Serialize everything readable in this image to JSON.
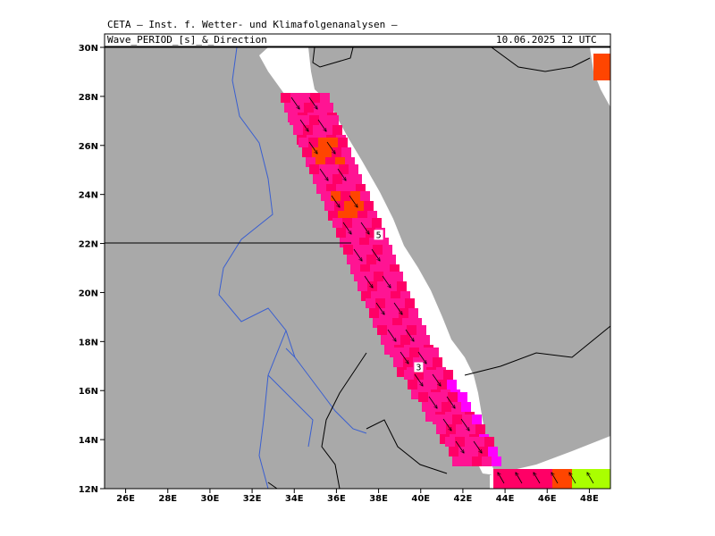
{
  "header": {
    "institute": "CETA — Inst. f. Wetter- und Klimafolgenanalysen —",
    "parameter": "Wave_PERIOD_[s]_&_Direction",
    "valid_time": "10.06.2025 12 UTC"
  },
  "map": {
    "lon_range": [
      25,
      49
    ],
    "lat_range": [
      12,
      30
    ],
    "lon_ticks": [
      "26E",
      "28E",
      "30E",
      "32E",
      "34E",
      "36E",
      "38E",
      "40E",
      "42E",
      "44E",
      "46E",
      "48E"
    ],
    "lat_ticks": [
      "12N",
      "14N",
      "16N",
      "18N",
      "20N",
      "22N",
      "24N",
      "26N",
      "28N",
      "30N"
    ],
    "land_color": "#a9a9a9",
    "coast_color": "#ffffff",
    "river_color": "#3a5fd0",
    "border_color": "#000000",
    "contour_labels": [
      {
        "text": "5",
        "lon": 38.0,
        "lat": 22.3
      },
      {
        "text": "3",
        "lon": 39.9,
        "lat": 16.9
      }
    ],
    "period_colors": {
      "magenta": "#ff1493",
      "crimson": "#ff0066",
      "orange": "#ff4500",
      "violet": "#ff00ff",
      "yellow_green": "#aaff00"
    }
  }
}
